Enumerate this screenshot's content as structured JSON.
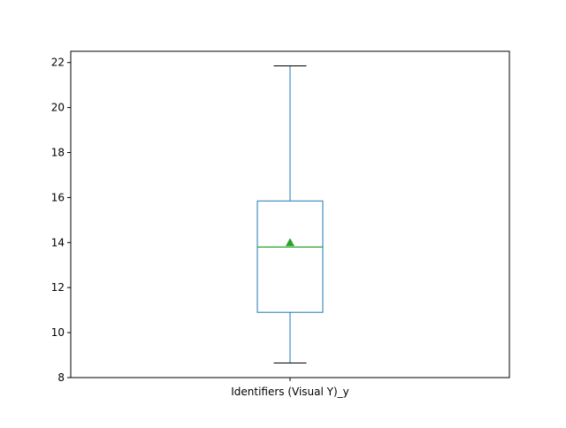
{
  "chart_data": {
    "type": "box",
    "title": "",
    "xlabel": "",
    "ylabel": "",
    "categories": [
      "Identifiers (Visual Y)_y"
    ],
    "ylim": [
      8,
      22.5
    ],
    "yticks": [
      8,
      10,
      12,
      14,
      16,
      18,
      20,
      22
    ],
    "grid": false,
    "legend": "none",
    "series": [
      {
        "whisker_low": 8.65,
        "q1": 10.9,
        "median": 13.8,
        "q3": 15.85,
        "whisker_high": 21.85,
        "mean": 14.0,
        "box_color": "#1f77b4",
        "median_color": "#2ca02c",
        "mean_color": "#2ca02c"
      }
    ]
  }
}
